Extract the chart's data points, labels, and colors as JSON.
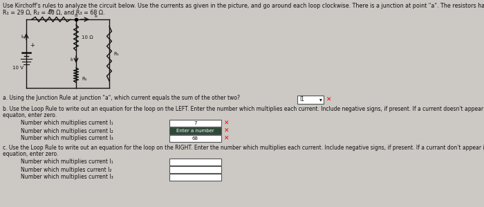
{
  "bg_color": "#ccc8c4",
  "title_line1": "Use Kirchoff's rules to analyze the circuit below. Use the currents as given in the picture, and go around each loop clockwise. There is a junction at point \"a\". The resistors have resistances of:",
  "title_line2": "R₁ = 29 Ω, R₂ = 40 Ω, and R₃ = 68 Ω.",
  "part_a_text": "a. Using the Junction Rule at junction \"a\", which current equals the sum of the other two?",
  "part_a_dropdown": "I1",
  "part_b_header1": "b. Use the Loop Rule to write out an equation for the loop on the LEFT. Enter the number which multiplies each current. Include negative signs, if present. If a current doesn't appear in the",
  "part_b_header2": "equaton, enter zero.",
  "part_b_rows": [
    {
      "label": "Number which multiplies current I₁",
      "value": "7",
      "has_x": true,
      "dark": false
    },
    {
      "label": "Number which multiplies current I₂",
      "value": "Enter a number",
      "has_x": true,
      "dark": true
    },
    {
      "label": "Number which multiplies current I₃",
      "value": "68",
      "has_x": true,
      "dark": false
    }
  ],
  "part_c_header1": "c. Use the Loop Rule to write out an equation for the loop on the RIGHT. Enter the number which multiplies each current. Include negative signs, if present. If a currant don't appear in the",
  "part_c_header2": "equation, enter zero.",
  "part_c_rows": [
    {
      "label": "Number which multiplies current I₁",
      "value": "",
      "has_x": false
    },
    {
      "label": "Number which multiples current I₂",
      "value": "",
      "has_x": false
    },
    {
      "label": "Number which multiplies current I₃",
      "value": "",
      "has_x": false
    }
  ],
  "fs_title": 5.8,
  "fs_body": 5.5,
  "fs_small": 5.0,
  "fs_circuit": 5.0,
  "tc": "#111111",
  "cc": "#111111",
  "lw": 1.0
}
